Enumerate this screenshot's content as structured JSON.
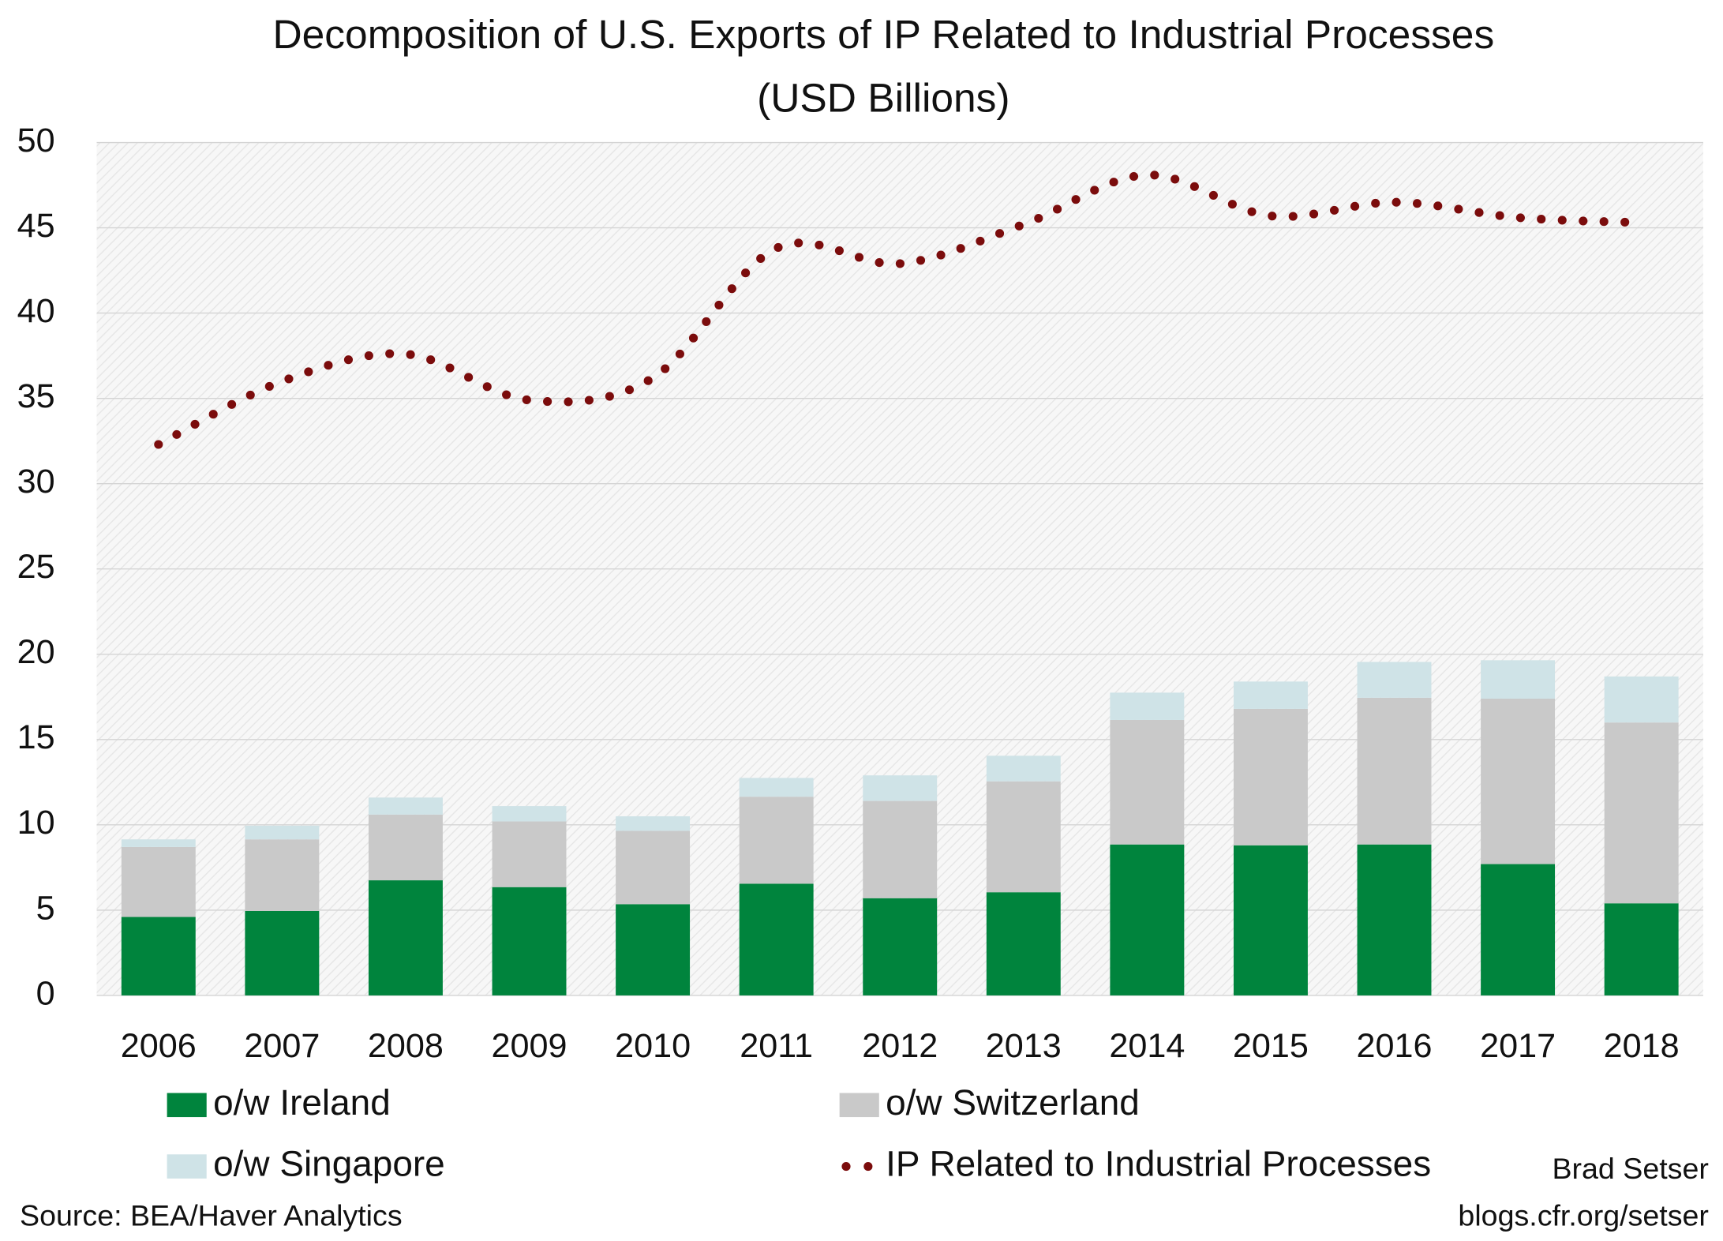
{
  "chart_data": {
    "type": "bar",
    "stacked": true,
    "title": "Decomposition of U.S. Exports of IP Related to Industrial Processes",
    "subtitle": "(USD Billions)",
    "categories": [
      "2006",
      "2007",
      "2008",
      "2009",
      "2010",
      "2011",
      "2012",
      "2013",
      "2014",
      "2015",
      "2016",
      "2017",
      "2018"
    ],
    "series": [
      {
        "name": "o/w Ireland",
        "color": "#00843d",
        "values": [
          4.6,
          4.95,
          6.75,
          6.35,
          5.35,
          6.55,
          5.7,
          6.05,
          8.85,
          8.8,
          8.85,
          7.7,
          5.4
        ]
      },
      {
        "name": "o/w Switzerland",
        "color": "#c9c9c9",
        "values": [
          4.1,
          4.2,
          3.85,
          3.85,
          4.3,
          5.1,
          5.7,
          6.5,
          7.3,
          8.0,
          8.6,
          9.7,
          10.6
        ]
      },
      {
        "name": "o/w Singapore",
        "color": "#cfe3e7",
        "values": [
          0.45,
          0.8,
          1.0,
          0.9,
          0.85,
          1.1,
          1.5,
          1.5,
          1.6,
          1.6,
          2.1,
          2.25,
          2.7
        ]
      },
      {
        "name": "IP Related to Industrial Processes",
        "type": "line",
        "color": "#7b0c0c",
        "values": [
          32.3,
          36.0,
          37.6,
          34.9,
          36.2,
          43.8,
          42.9,
          45.2,
          48.1,
          45.7,
          46.5,
          45.6,
          45.3
        ]
      }
    ],
    "ylim": [
      0,
      50
    ],
    "yticks": [
      0,
      5,
      10,
      15,
      20,
      25,
      30,
      35,
      40,
      45,
      50
    ],
    "grid": true,
    "legend": "bottom",
    "source": "Source: BEA/Haver Analytics",
    "author": "Brad Setser",
    "website": "blogs.cfr.org/setser"
  }
}
